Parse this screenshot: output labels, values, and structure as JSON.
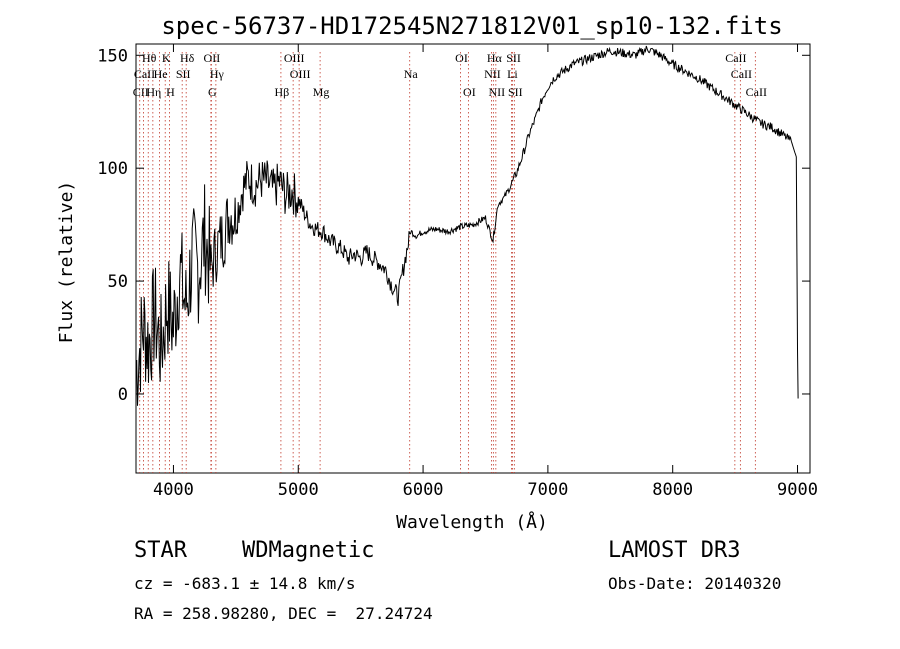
{
  "chart_data": {
    "type": "line",
    "title": "spec-56737-HD172545N271812V01_sp10-132.fits",
    "xlabel": "Wavelength (Å)",
    "ylabel": "Flux (relative)",
    "xlim": [
      3700,
      9100
    ],
    "ylim": [
      -35,
      155
    ],
    "xticks": [
      4000,
      5000,
      6000,
      7000,
      8000,
      9000
    ],
    "yticks": [
      0,
      50,
      100,
      150
    ],
    "series": [
      {
        "x": [
          3700,
          3760,
          3800,
          3850,
          3900,
          3950,
          4000,
          4050,
          4100,
          4150,
          4200,
          4250,
          4300,
          4350,
          4400,
          4450,
          4500,
          4550,
          4600,
          4650,
          4700,
          4750,
          4800,
          4850,
          4900,
          4950,
          5000,
          5050,
          5100,
          5150,
          5200,
          5250,
          5300,
          5350,
          5400,
          5450,
          5500,
          5550,
          5600,
          5650,
          5700,
          5750,
          5800,
          5850,
          5900,
          5950,
          6000,
          6100,
          6200,
          6300,
          6400,
          6500,
          6560,
          6600,
          6650,
          6700,
          6750,
          6800,
          6850,
          6900,
          6950,
          7000,
          7050,
          7100,
          7200,
          7300,
          7400,
          7500,
          7600,
          7700,
          7800,
          7900,
          8000,
          8100,
          8200,
          8300,
          8400,
          8500,
          8600,
          8700,
          8800,
          8900,
          8950,
          8990,
          9000,
          9005
        ],
        "y": [
          10,
          30,
          22,
          35,
          20,
          40,
          30,
          55,
          38,
          60,
          55,
          70,
          55,
          65,
          70,
          80,
          78,
          90,
          96,
          92,
          95,
          94,
          90,
          94,
          88,
          90,
          86,
          80,
          75,
          73,
          72,
          68,
          66,
          64,
          60,
          62,
          60,
          63,
          60,
          58,
          55,
          48,
          43,
          58,
          72,
          70,
          72,
          73,
          72,
          74,
          75,
          78,
          68,
          84,
          87,
          92,
          98,
          106,
          115,
          122,
          130,
          136,
          140,
          142,
          146,
          148,
          150,
          152,
          151,
          150,
          153,
          150,
          146,
          143,
          140,
          136,
          132,
          128,
          124,
          120,
          118,
          114,
          112,
          105,
          20,
          -2
        ]
      }
    ],
    "lines": [
      {
        "name": "Hθ",
        "x": 3798,
        "row": 1
      },
      {
        "name": "K",
        "x": 3934,
        "row": 1
      },
      {
        "name": "Hδ",
        "x": 4102,
        "row": 1
      },
      {
        "name": "OII",
        "x": 4300,
        "row": 1
      },
      {
        "name": "OIII",
        "x": 4959,
        "row": 1
      },
      {
        "name": "OI",
        "x": 6300,
        "row": 1
      },
      {
        "name": "Hα",
        "x": 6563,
        "row": 1
      },
      {
        "name": "SII",
        "x": 6717,
        "row": 1
      },
      {
        "name": "CaII",
        "x": 8498,
        "row": 1
      },
      {
        "name": "CaII",
        "x": 3760,
        "row": 2
      },
      {
        "name": "He",
        "x": 3889,
        "row": 2
      },
      {
        "name": "SII",
        "x": 4070,
        "row": 2
      },
      {
        "name": "Hγ",
        "x": 4340,
        "row": 2
      },
      {
        "name": "OIII",
        "x": 5007,
        "row": 2
      },
      {
        "name": "Na",
        "x": 5893,
        "row": 2
      },
      {
        "name": "NII",
        "x": 6548,
        "row": 2
      },
      {
        "name": "Li",
        "x": 6708,
        "row": 2
      },
      {
        "name": "CaII",
        "x": 8542,
        "row": 2
      },
      {
        "name": "CII",
        "x": 3730,
        "row": 3
      },
      {
        "name": "Hη",
        "x": 3835,
        "row": 3
      },
      {
        "name": "H",
        "x": 3968,
        "row": 3
      },
      {
        "name": "G",
        "x": 4304,
        "row": 3
      },
      {
        "name": "Hβ",
        "x": 4861,
        "row": 3
      },
      {
        "name": "Mg",
        "x": 5175,
        "row": 3
      },
      {
        "name": "OI",
        "x": 6363,
        "row": 3
      },
      {
        "name": "NII",
        "x": 6583,
        "row": 3
      },
      {
        "name": "SII",
        "x": 6731,
        "row": 3
      },
      {
        "name": "CaII",
        "x": 8662,
        "row": 3
      }
    ]
  },
  "info": {
    "class": "STAR",
    "subclass": "WDMagnetic",
    "survey": "LAMOST DR3",
    "cz": "cz = -683.1 ± 14.8 km/s",
    "obsdate": "Obs-Date: 20140320",
    "radec": "RA = 258.98280, DEC =  27.24724"
  }
}
